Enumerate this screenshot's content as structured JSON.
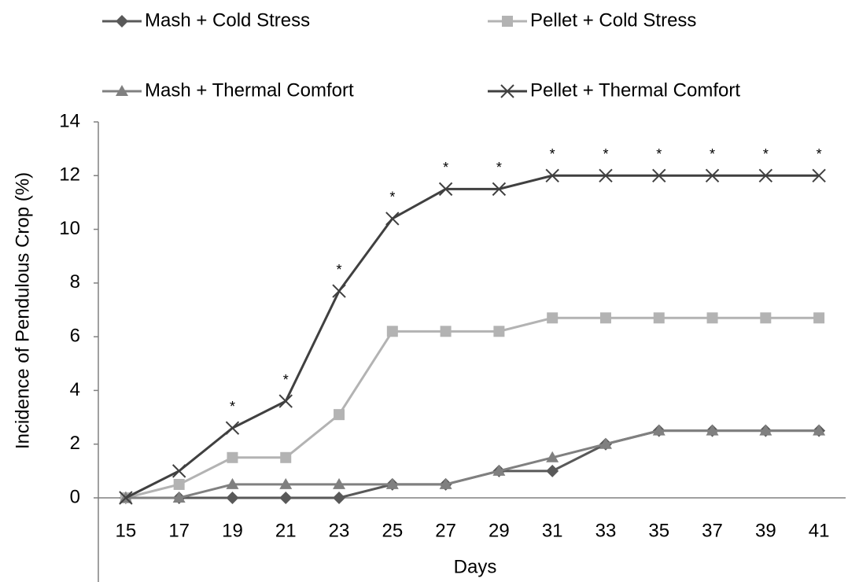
{
  "chart_data": {
    "type": "line",
    "x_label": "Days",
    "y_label": "Incidence of Pendulous Crop (%)",
    "x": [
      15,
      17,
      19,
      21,
      23,
      25,
      27,
      29,
      31,
      33,
      35,
      37,
      39,
      41
    ],
    "xlim": [
      14,
      42
    ],
    "xticks": [
      15,
      17,
      19,
      21,
      23,
      25,
      27,
      29,
      31,
      33,
      35,
      37,
      39,
      41
    ],
    "ylim": [
      0,
      14
    ],
    "yticks": [
      0,
      2,
      4,
      6,
      8,
      10,
      12,
      14
    ],
    "grid": false,
    "legend": "top",
    "series": [
      {
        "name": "Mash + Cold Stress",
        "color": "#595959",
        "marker": "diamond",
        "values": [
          0,
          0,
          0,
          0,
          0,
          0.5,
          0.5,
          1,
          1,
          2,
          2.5,
          2.5,
          2.5,
          2.5
        ]
      },
      {
        "name": "Pellet + Cold Stress",
        "color": "#b3b3b3",
        "marker": "square",
        "values": [
          0,
          0.5,
          1.5,
          1.5,
          3.1,
          6.2,
          6.2,
          6.2,
          6.7,
          6.7,
          6.7,
          6.7,
          6.7,
          6.7
        ]
      },
      {
        "name": "Mash + Thermal Comfort",
        "color": "#808080",
        "marker": "triangle",
        "values": [
          0,
          0,
          0.5,
          0.5,
          0.5,
          0.5,
          0.5,
          1,
          1.5,
          2,
          2.5,
          2.5,
          2.5,
          2.5
        ]
      },
      {
        "name": "Pellet + Thermal Comfort",
        "color": "#404040",
        "marker": "x",
        "values": [
          0,
          1,
          2.6,
          3.6,
          7.7,
          10.4,
          11.5,
          11.5,
          12,
          12,
          12,
          12,
          12,
          12
        ]
      }
    ],
    "annotations": [
      {
        "x": 19,
        "text": "*"
      },
      {
        "x": 21,
        "text": "*"
      },
      {
        "x": 23,
        "text": "*"
      },
      {
        "x": 25,
        "text": "*"
      },
      {
        "x": 27,
        "text": "*"
      },
      {
        "x": 29,
        "text": "*"
      },
      {
        "x": 31,
        "text": "*"
      },
      {
        "x": 33,
        "text": "*"
      },
      {
        "x": 35,
        "text": "*"
      },
      {
        "x": 37,
        "text": "*"
      },
      {
        "x": 39,
        "text": "*"
      },
      {
        "x": 41,
        "text": "*"
      }
    ]
  }
}
